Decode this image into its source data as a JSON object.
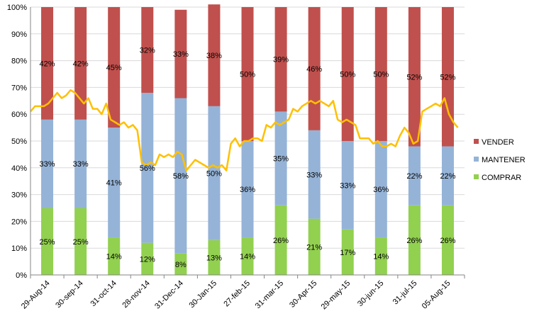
{
  "chart_data": {
    "type": "bar",
    "stacked": true,
    "title": "",
    "xlabel": "",
    "ylabel": "",
    "ylim": [
      0,
      100
    ],
    "y_ticks": [
      "0%",
      "10%",
      "20%",
      "30%",
      "40%",
      "50%",
      "60%",
      "70%",
      "80%",
      "90%",
      "100%"
    ],
    "categories": [
      "29-Aug-14",
      "30-sep-14",
      "31-oct-14",
      "28-nov-14",
      "31-Dec-14",
      "30-Jan-15",
      "27-feb-15",
      "31-mar-15",
      "30-Apr-15",
      "29-may-15",
      "30-jun-15",
      "31-jul-15",
      "05-Aug-15"
    ],
    "series": [
      {
        "name": "COMPRAR",
        "color": "#92d050",
        "values": [
          25,
          25,
          14,
          12,
          8,
          13,
          14,
          26,
          21,
          17,
          14,
          26,
          26
        ],
        "labels": [
          "25%",
          "25%",
          "14%",
          "12%",
          "8%",
          "13%",
          "14%",
          "26%",
          "21%",
          "17%",
          "14%",
          "26%",
          "26%"
        ]
      },
      {
        "name": "MANTENER",
        "color": "#95b3d7",
        "values": [
          33,
          33,
          41,
          56,
          58,
          50,
          36,
          35,
          33,
          33,
          36,
          22,
          22
        ],
        "labels": [
          "33%",
          "33%",
          "41%",
          "56%",
          "58%",
          "50%",
          "36%",
          "35%",
          "33%",
          "33%",
          "36%",
          "22%",
          "22%"
        ]
      },
      {
        "name": "VENDER",
        "color": "#c0504d",
        "values": [
          42,
          42,
          45,
          32,
          33,
          38,
          50,
          39,
          46,
          50,
          50,
          52,
          52
        ],
        "labels": [
          "42%",
          "42%",
          "45%",
          "32%",
          "33%",
          "38%",
          "50%",
          "39%",
          "46%",
          "50%",
          "50%",
          "52%",
          "52%"
        ]
      }
    ],
    "legend": [
      "VENDER",
      "MANTENER",
      "COMPRAR"
    ],
    "legend_position": "right",
    "overlay_line": {
      "color": "#ffc000",
      "x_start": -0.5,
      "x_end": 12.3,
      "values": [
        61,
        63,
        63,
        63,
        64,
        66,
        68,
        66,
        67,
        69,
        68,
        66,
        64,
        66,
        62,
        62,
        60,
        64,
        58,
        57,
        56,
        57,
        55,
        56,
        54,
        42,
        41,
        42,
        41,
        45,
        44,
        45,
        44,
        46,
        45,
        39,
        41,
        43,
        42,
        41,
        40,
        41,
        40,
        41,
        39,
        49,
        51,
        48,
        50,
        50,
        51,
        51,
        50,
        56,
        55,
        57,
        56,
        57,
        58,
        62,
        61,
        63,
        64,
        65,
        64,
        65,
        64,
        63,
        65,
        58,
        57,
        58,
        57,
        56,
        51,
        51,
        51,
        49,
        50,
        48,
        48,
        49,
        48,
        52,
        55,
        53,
        49,
        50,
        61,
        62,
        63,
        64,
        63,
        66,
        60,
        57,
        55
      ]
    }
  }
}
